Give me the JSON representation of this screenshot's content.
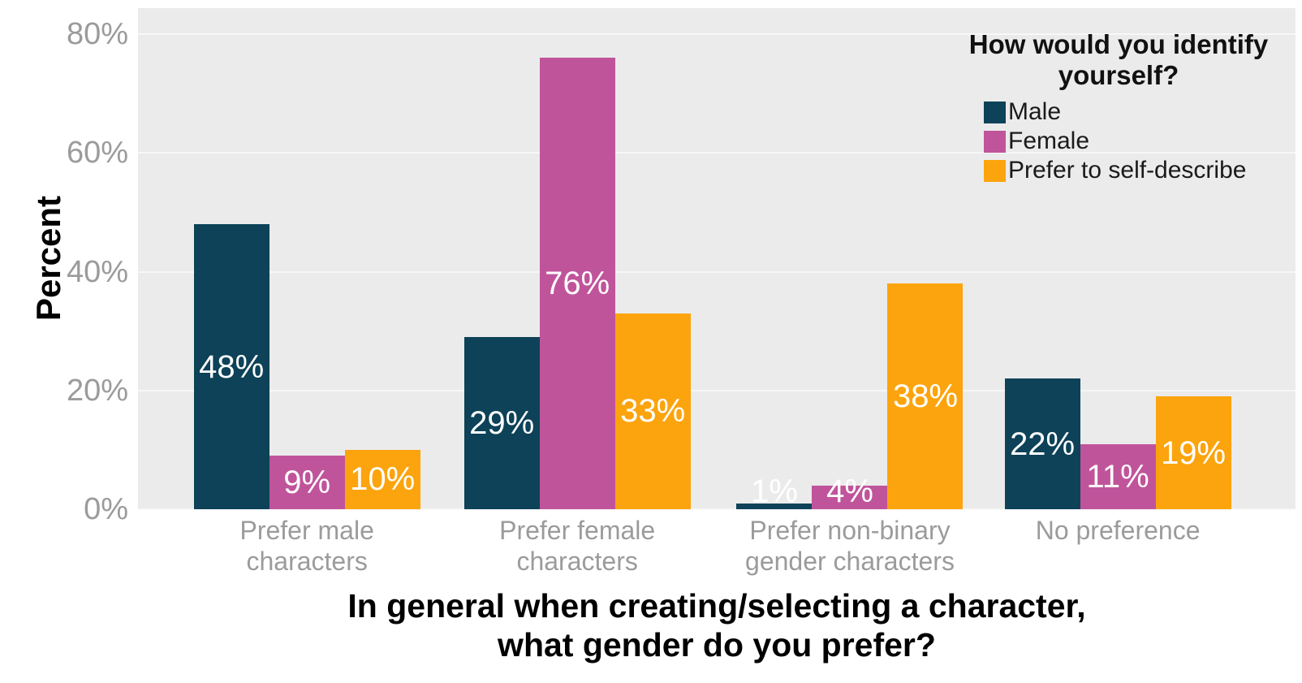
{
  "chart_data": {
    "type": "bar",
    "grouped": true,
    "categories": [
      "Prefer male\ncharacters",
      "Prefer female\ncharacters",
      "Prefer non-binary\ngender characters",
      "No preference"
    ],
    "series": [
      {
        "name": "Male",
        "color": "#0d4258",
        "values": [
          48,
          29,
          1,
          22
        ],
        "labels": [
          "48%",
          "29%",
          "1%",
          "22%"
        ]
      },
      {
        "name": "Female",
        "color": "#c0549b",
        "values": [
          9,
          76,
          4,
          11
        ],
        "labels": [
          "9%",
          "76%",
          "4%",
          "11%"
        ]
      },
      {
        "name": "Prefer to self-describe",
        "color": "#fca40d",
        "values": [
          10,
          33,
          38,
          19
        ],
        "labels": [
          "10%",
          "33%",
          "38%",
          "19%"
        ]
      }
    ],
    "ylabel": "Percent",
    "xlabel": "In general when creating/selecting a character,\nwhat gender do you prefer?",
    "yticks": [
      {
        "value": 0,
        "label": "0%"
      },
      {
        "value": 20,
        "label": "20%"
      },
      {
        "value": 40,
        "label": "40%"
      },
      {
        "value": 60,
        "label": "60%"
      },
      {
        "value": 80,
        "label": "80%"
      }
    ],
    "ylim": [
      0,
      84.4
    ],
    "grid": true,
    "legend": {
      "title": "How would you identify yourself?",
      "position": "inside-top-right"
    },
    "colors": {
      "panel_bg": "#ebebeb",
      "grid": "#f7f7f7",
      "axis_text": "#9b9b9b",
      "title_text": "#000000",
      "bar_label": "#ffffff"
    }
  }
}
